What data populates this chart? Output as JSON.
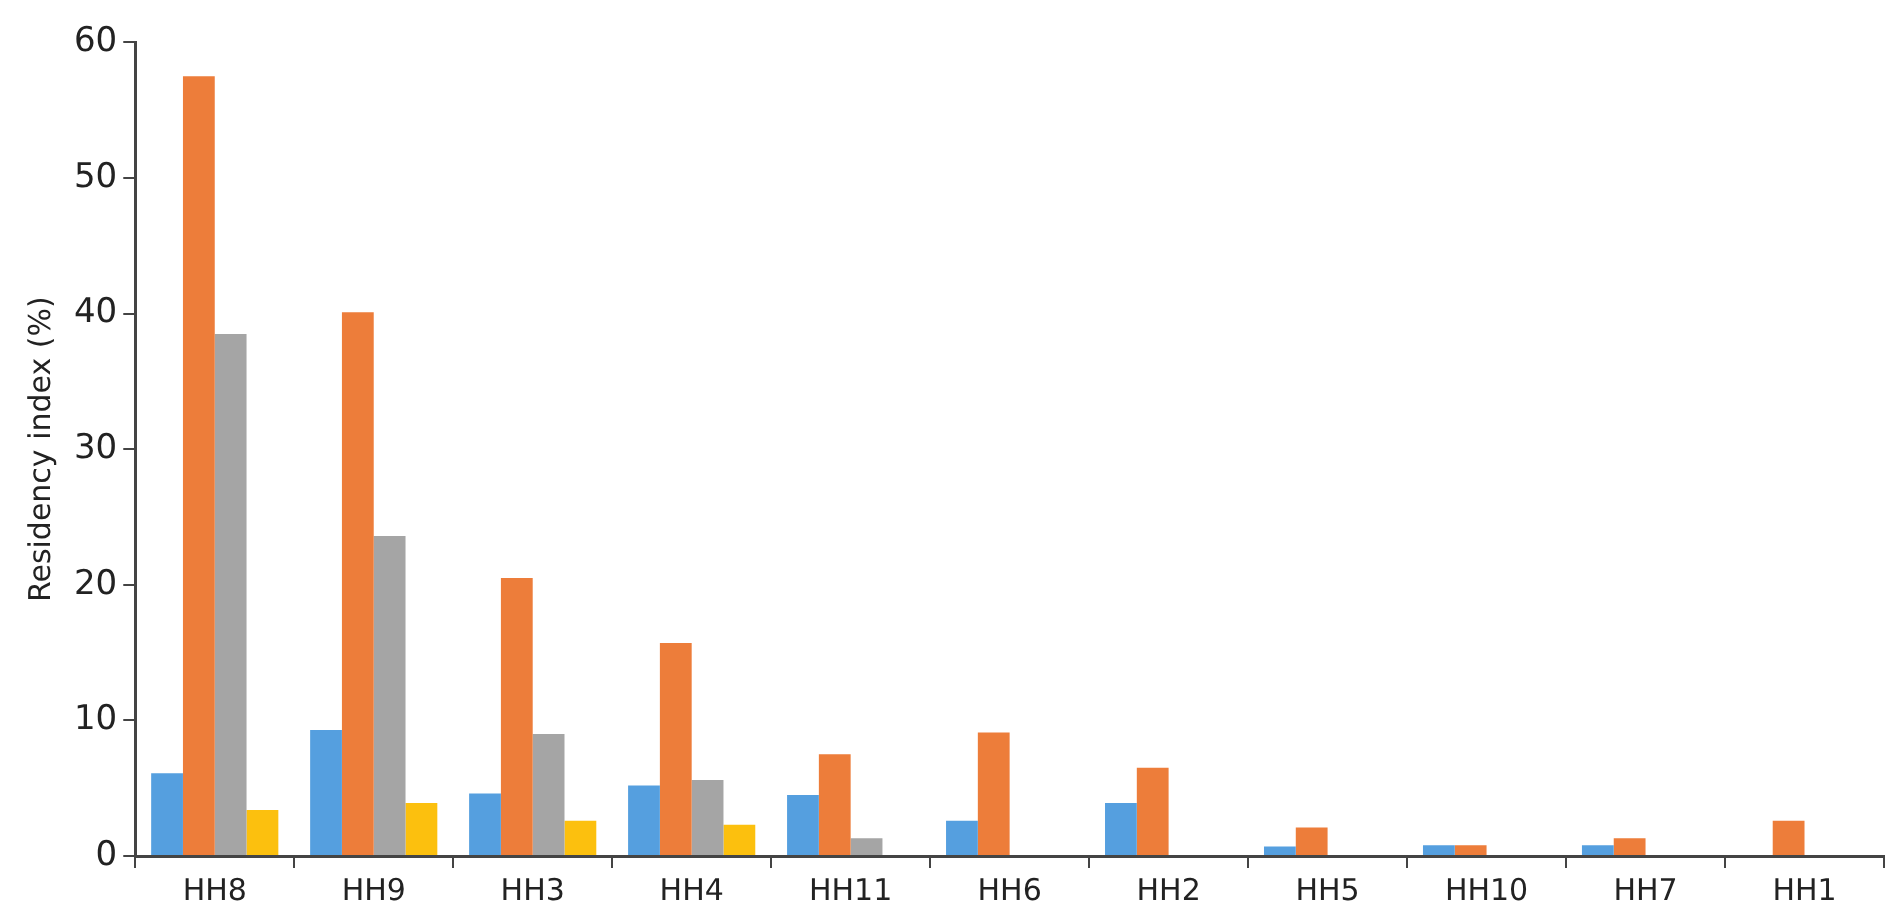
{
  "chart_data": {
    "type": "bar",
    "ylabel": "Residency index (%)",
    "categories": [
      "HH8",
      "HH9",
      "HH3",
      "HH4",
      "HH11",
      "HH6",
      "HH2",
      "HH5",
      "HH10",
      "HH7",
      "HH1"
    ],
    "series": [
      {
        "color": "#559fdf",
        "values": [
          6.1,
          9.3,
          4.6,
          5.2,
          4.5,
          2.6,
          3.9,
          0.7,
          0.8,
          0.8,
          null
        ]
      },
      {
        "color": "#ed7d3a",
        "values": [
          57.5,
          40.1,
          20.5,
          15.7,
          7.5,
          9.1,
          6.5,
          2.1,
          0.8,
          1.3,
          2.6
        ]
      },
      {
        "color": "#a5a5a5",
        "values": [
          38.5,
          23.6,
          9.0,
          5.6,
          1.3,
          null,
          null,
          null,
          null,
          null,
          null
        ]
      },
      {
        "color": "#fcc00e",
        "values": [
          3.4,
          3.9,
          2.6,
          2.3,
          null,
          null,
          null,
          null,
          null,
          null,
          null
        ]
      }
    ],
    "ylim": [
      0,
      60
    ],
    "yticks": [
      0,
      10,
      20,
      30,
      40,
      50,
      60
    ],
    "grid": false,
    "legend": false
  }
}
